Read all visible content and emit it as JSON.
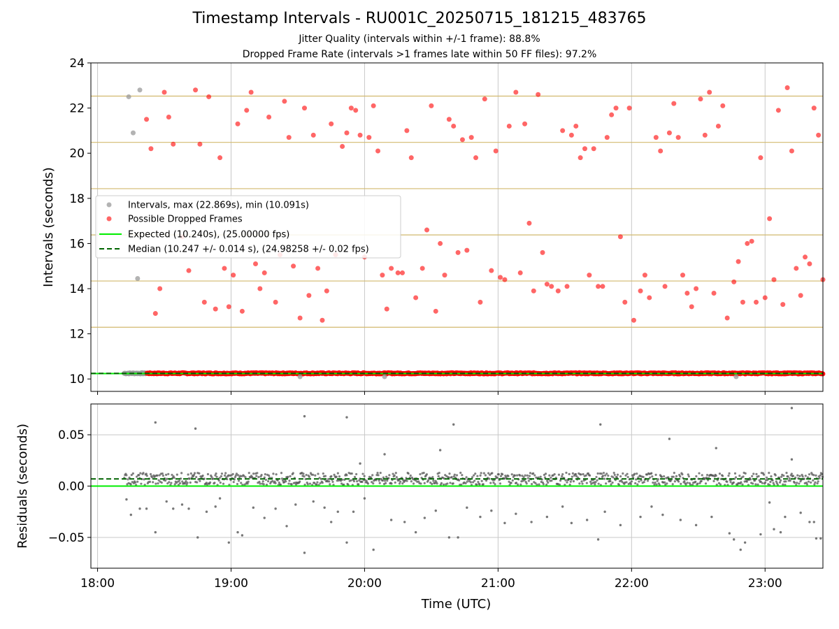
{
  "title": "Timestamp Intervals - RU001C_20250715_181215_483765",
  "subtitle_1": "Jitter Quality (intervals within +/-1 frame): 88.8%",
  "subtitle_2": "Dropped Frame Rate (intervals >1 frames late within 50 FF files): 97.2%",
  "colors": {
    "intervals": "#999999",
    "dropped": "#ff0000",
    "expected": "#00ee00",
    "median": "#006400",
    "frame_grid": "#d2b96e",
    "grid": "#c8c8c8",
    "residuals": "#555555"
  },
  "chart_data": [
    {
      "type": "scatter",
      "panel": "intervals",
      "ylabel": "Intervals (seconds)",
      "xlabel": "",
      "xlim": [
        "17:57",
        "23:26"
      ],
      "ylim": [
        9.45,
        24.0
      ],
      "yticks": [
        10,
        12,
        14,
        16,
        18,
        20,
        22,
        24
      ],
      "ytick_labels": [
        "10",
        "12",
        "14",
        "16",
        "18",
        "20",
        "22",
        "24"
      ],
      "frame_gridlines": [
        10.24,
        12.29,
        14.34,
        16.38,
        18.43,
        20.48,
        22.53
      ],
      "grid": true,
      "legend_position": "center-left",
      "legend": [
        "Intervals, max (22.869s), min (10.091s)",
        "Possible Dropped Frames",
        "Expected (10.240s), (25.00000 fps)",
        "Median (10.247 +/- 0.014 s), (24.98258 +/- 0.02 fps)"
      ],
      "expected": 10.24,
      "median": 10.247,
      "dense_band": {
        "x_range": [
          "18:12",
          "23:26"
        ],
        "y": 10.25,
        "dropped_from": "18:22"
      },
      "series": [
        {
          "name": "Intervals, max (22.869s), min (10.091s)",
          "points": [
            [
              "18:14",
              22.5
            ],
            [
              "18:16",
              20.9
            ],
            [
              "18:19",
              22.8
            ],
            [
              "18:18",
              14.45
            ],
            [
              "20:09",
              10.1
            ],
            [
              "19:31",
              10.1
            ],
            [
              "22:47",
              10.1
            ]
          ]
        },
        {
          "name": "Possible Dropped Frames",
          "points": [
            [
              "18:22",
              21.5
            ],
            [
              "18:24",
              20.2
            ],
            [
              "18:26",
              12.9
            ],
            [
              "18:28",
              14.0
            ],
            [
              "18:30",
              22.7
            ],
            [
              "18:32",
              21.6
            ],
            [
              "18:34",
              20.4
            ],
            [
              "18:38",
              16.3
            ],
            [
              "18:41",
              14.8
            ],
            [
              "18:44",
              22.8
            ],
            [
              "18:46",
              20.4
            ],
            [
              "18:48",
              13.4
            ],
            [
              "18:50",
              22.5
            ],
            [
              "18:53",
              13.1
            ],
            [
              "18:55",
              19.8
            ],
            [
              "18:57",
              14.9
            ],
            [
              "18:59",
              13.2
            ],
            [
              "19:01",
              14.6
            ],
            [
              "19:03",
              21.3
            ],
            [
              "19:05",
              13.0
            ],
            [
              "19:07",
              21.9
            ],
            [
              "19:09",
              22.7
            ],
            [
              "19:11",
              15.1
            ],
            [
              "19:13",
              14.0
            ],
            [
              "19:15",
              14.7
            ],
            [
              "19:17",
              21.6
            ],
            [
              "19:20",
              13.4
            ],
            [
              "19:22",
              15.5
            ],
            [
              "19:24",
              22.3
            ],
            [
              "19:26",
              20.7
            ],
            [
              "19:28",
              15.0
            ],
            [
              "19:31",
              12.7
            ],
            [
              "19:33",
              22.0
            ],
            [
              "19:35",
              13.7
            ],
            [
              "19:37",
              20.8
            ],
            [
              "19:39",
              14.9
            ],
            [
              "19:41",
              12.6
            ],
            [
              "19:43",
              13.9
            ],
            [
              "19:45",
              21.3
            ],
            [
              "19:47",
              15.5
            ],
            [
              "19:50",
              20.3
            ],
            [
              "19:52",
              20.9
            ],
            [
              "19:54",
              22.0
            ],
            [
              "19:56",
              21.9
            ],
            [
              "19:58",
              20.8
            ],
            [
              "20:00",
              15.4
            ],
            [
              "20:02",
              20.7
            ],
            [
              "20:04",
              22.1
            ],
            [
              "20:06",
              20.1
            ],
            [
              "20:08",
              14.6
            ],
            [
              "20:10",
              13.1
            ],
            [
              "20:12",
              14.9
            ],
            [
              "20:15",
              14.7
            ],
            [
              "20:17",
              14.7
            ],
            [
              "20:19",
              21.0
            ],
            [
              "20:21",
              19.8
            ],
            [
              "20:23",
              13.6
            ],
            [
              "20:26",
              14.9
            ],
            [
              "20:28",
              16.6
            ],
            [
              "20:30",
              22.1
            ],
            [
              "20:32",
              13.0
            ],
            [
              "20:34",
              16.0
            ],
            [
              "20:36",
              14.6
            ],
            [
              "20:38",
              21.5
            ],
            [
              "20:40",
              21.2
            ],
            [
              "20:42",
              15.6
            ],
            [
              "20:44",
              20.6
            ],
            [
              "20:46",
              15.7
            ],
            [
              "20:48",
              20.7
            ],
            [
              "20:50",
              19.8
            ],
            [
              "20:52",
              13.4
            ],
            [
              "20:54",
              22.4
            ],
            [
              "20:57",
              14.8
            ],
            [
              "20:59",
              20.1
            ],
            [
              "21:01",
              14.5
            ],
            [
              "21:03",
              14.4
            ],
            [
              "21:05",
              21.2
            ],
            [
              "21:08",
              22.7
            ],
            [
              "21:10",
              14.7
            ],
            [
              "21:12",
              21.3
            ],
            [
              "21:14",
              16.9
            ],
            [
              "21:16",
              13.9
            ],
            [
              "21:18",
              22.6
            ],
            [
              "21:20",
              15.6
            ],
            [
              "21:22",
              14.2
            ],
            [
              "21:24",
              14.1
            ],
            [
              "21:27",
              13.9
            ],
            [
              "21:29",
              21.0
            ],
            [
              "21:31",
              14.1
            ],
            [
              "21:33",
              20.8
            ],
            [
              "21:35",
              21.2
            ],
            [
              "21:37",
              19.8
            ],
            [
              "21:39",
              20.2
            ],
            [
              "21:41",
              14.6
            ],
            [
              "21:43",
              20.2
            ],
            [
              "21:45",
              14.1
            ],
            [
              "21:47",
              14.1
            ],
            [
              "21:49",
              20.7
            ],
            [
              "21:51",
              21.7
            ],
            [
              "21:53",
              22.0
            ],
            [
              "21:55",
              16.3
            ],
            [
              "21:57",
              13.4
            ],
            [
              "21:59",
              22.0
            ],
            [
              "22:01",
              12.6
            ],
            [
              "22:04",
              13.9
            ],
            [
              "22:06",
              14.6
            ],
            [
              "22:08",
              13.6
            ],
            [
              "22:11",
              20.7
            ],
            [
              "22:13",
              20.1
            ],
            [
              "22:15",
              14.1
            ],
            [
              "22:17",
              20.9
            ],
            [
              "22:19",
              22.2
            ],
            [
              "22:21",
              20.7
            ],
            [
              "22:23",
              14.6
            ],
            [
              "22:25",
              13.8
            ],
            [
              "22:27",
              13.2
            ],
            [
              "22:29",
              14.0
            ],
            [
              "22:31",
              22.4
            ],
            [
              "22:33",
              20.8
            ],
            [
              "22:35",
              22.7
            ],
            [
              "22:37",
              13.8
            ],
            [
              "22:39",
              21.2
            ],
            [
              "22:41",
              22.1
            ],
            [
              "22:43",
              12.7
            ],
            [
              "22:46",
              14.3
            ],
            [
              "22:48",
              15.2
            ],
            [
              "22:50",
              13.4
            ],
            [
              "22:52",
              16.0
            ],
            [
              "22:54",
              16.1
            ],
            [
              "22:56",
              13.4
            ],
            [
              "22:58",
              19.8
            ],
            [
              "23:00",
              13.6
            ],
            [
              "23:02",
              17.1
            ],
            [
              "23:04",
              14.4
            ],
            [
              "23:06",
              21.9
            ],
            [
              "23:08",
              13.3
            ],
            [
              "23:10",
              22.9
            ],
            [
              "23:12",
              20.1
            ],
            [
              "23:14",
              14.9
            ],
            [
              "23:16",
              13.7
            ],
            [
              "23:18",
              15.4
            ],
            [
              "23:20",
              15.1
            ],
            [
              "23:22",
              22.0
            ],
            [
              "23:24",
              20.8
            ],
            [
              "23:26",
              14.4
            ]
          ]
        }
      ]
    },
    {
      "type": "scatter",
      "panel": "residuals",
      "ylabel": "Residuals (seconds)",
      "xlabel": "Time (UTC)",
      "xlim": [
        "17:57",
        "23:26"
      ],
      "ylim": [
        -0.08,
        0.08
      ],
      "yticks": [
        -0.05,
        0.0,
        0.05
      ],
      "ytick_labels": [
        "−0.05",
        "0.00",
        "0.05"
      ],
      "xticks": [
        "18:00",
        "19:00",
        "20:00",
        "21:00",
        "22:00",
        "23:00"
      ],
      "grid": true,
      "expected_line": 0.0,
      "median_line": 0.007,
      "dense_band": {
        "x_range": [
          "18:12",
          "23:26"
        ],
        "center": 0.007,
        "spread": 0.006
      },
      "series": [
        {
          "name": "",
          "points": [
            [
              "18:26",
              0.062
            ],
            [
              "18:44",
              0.056
            ],
            [
              "19:33",
              0.068
            ],
            [
              "19:52",
              0.067
            ],
            [
              "20:34",
              0.035
            ],
            [
              "20:40",
              0.06
            ],
            [
              "21:46",
              0.06
            ],
            [
              "22:17",
              0.046
            ],
            [
              "22:38",
              0.037
            ],
            [
              "23:12",
              0.076
            ],
            [
              "23:12",
              0.026
            ],
            [
              "20:09",
              0.031
            ],
            [
              "19:58",
              0.022
            ],
            [
              "19:33",
              -0.065
            ],
            [
              "18:26",
              -0.045
            ],
            [
              "18:45",
              -0.05
            ],
            [
              "18:59",
              -0.055
            ],
            [
              "19:03",
              -0.045
            ],
            [
              "19:05",
              -0.048
            ],
            [
              "19:52",
              -0.055
            ],
            [
              "20:04",
              -0.062
            ],
            [
              "20:23",
              -0.045
            ],
            [
              "20:38",
              -0.05
            ],
            [
              "20:42",
              -0.05
            ],
            [
              "21:45",
              -0.052
            ],
            [
              "22:44",
              -0.046
            ],
            [
              "22:46",
              -0.052
            ],
            [
              "22:49",
              -0.062
            ],
            [
              "22:51",
              -0.055
            ],
            [
              "22:58",
              -0.047
            ],
            [
              "23:04",
              -0.042
            ],
            [
              "23:07",
              -0.045
            ],
            [
              "23:23",
              -0.051
            ],
            [
              "23:25",
              -0.051
            ],
            [
              "23:22",
              -0.035
            ],
            [
              "18:13",
              -0.013
            ],
            [
              "18:15",
              -0.028
            ],
            [
              "18:19",
              -0.022
            ],
            [
              "18:22",
              -0.022
            ],
            [
              "18:31",
              -0.015
            ],
            [
              "18:34",
              -0.022
            ],
            [
              "18:38",
              -0.018
            ],
            [
              "18:41",
              -0.022
            ],
            [
              "18:49",
              -0.025
            ],
            [
              "18:53",
              -0.02
            ],
            [
              "18:55",
              -0.012
            ],
            [
              "19:10",
              -0.021
            ],
            [
              "19:15",
              -0.031
            ],
            [
              "19:20",
              -0.022
            ],
            [
              "19:25",
              -0.039
            ],
            [
              "19:29",
              -0.018
            ],
            [
              "19:37",
              -0.015
            ],
            [
              "19:42",
              -0.021
            ],
            [
              "19:45",
              -0.035
            ],
            [
              "19:48",
              -0.025
            ],
            [
              "19:55",
              -0.025
            ],
            [
              "20:00",
              -0.012
            ],
            [
              "20:12",
              -0.033
            ],
            [
              "20:18",
              -0.035
            ],
            [
              "20:27",
              -0.031
            ],
            [
              "20:32",
              -0.024
            ],
            [
              "20:46",
              -0.021
            ],
            [
              "20:52",
              -0.03
            ],
            [
              "20:57",
              -0.024
            ],
            [
              "21:03",
              -0.036
            ],
            [
              "21:08",
              -0.027
            ],
            [
              "21:15",
              -0.035
            ],
            [
              "21:22",
              -0.03
            ],
            [
              "21:29",
              -0.02
            ],
            [
              "21:33",
              -0.036
            ],
            [
              "21:40",
              -0.033
            ],
            [
              "21:48",
              -0.025
            ],
            [
              "21:55",
              -0.038
            ],
            [
              "22:04",
              -0.03
            ],
            [
              "22:09",
              -0.02
            ],
            [
              "22:14",
              -0.028
            ],
            [
              "22:22",
              -0.033
            ],
            [
              "22:29",
              -0.038
            ],
            [
              "22:36",
              -0.03
            ],
            [
              "23:02",
              -0.016
            ],
            [
              "23:09",
              -0.03
            ],
            [
              "23:16",
              -0.026
            ],
            [
              "23:20",
              -0.035
            ]
          ]
        }
      ]
    }
  ]
}
